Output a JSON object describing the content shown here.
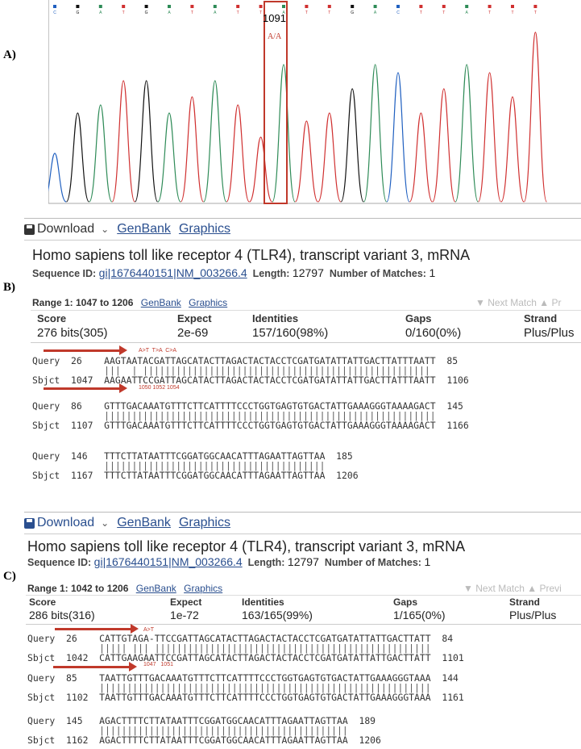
{
  "labels": {
    "a": "A)",
    "b": "B)",
    "c": "C)"
  },
  "chromatogram": {
    "position_label": "1091",
    "genotype": "A/A",
    "bases": [
      "C",
      "G",
      "A",
      "T",
      "G",
      "A",
      "T",
      "A",
      "T",
      "T",
      "A",
      "T",
      "T",
      "G",
      "A",
      "C",
      "T",
      "T",
      "A",
      "T",
      "T",
      "T"
    ]
  },
  "blast_b": {
    "download": "Download",
    "genbank": "GenBank",
    "graphics": "Graphics",
    "title": "Homo sapiens toll like receptor 4 (TLR4), transcript variant 3, mRNA",
    "seqid_label": "Sequence ID:",
    "seqid_value": "gi|1676440151|NM_003266.4",
    "length_label": "Length:",
    "length_value": "12797",
    "matches_label": "Number of Matches:",
    "matches_value": "1",
    "range_text": "Range 1: 1047 to 1206",
    "range_genbank": "GenBank",
    "range_graphics": "Graphics",
    "next_match": "▼ Next Match  ▲ Pr",
    "headers": {
      "score": "Score",
      "expect": "Expect",
      "identities": "Identities",
      "gaps": "Gaps",
      "strand": "Strand"
    },
    "values": {
      "score": "276 bits(305)",
      "expect": "2e-69",
      "identities": "157/160(98%)",
      "gaps": "0/160(0%)",
      "strand": "Plus/Plus"
    },
    "mutation_top": "A>T  T>A  C>A",
    "mutation_bottom": "1050 1052 1054",
    "lines": [
      "Query  26    AAGTAATACGATTAGCATACTTAGACTACTACCTCGATGATATTATTGACTTATTTAATT  85",
      "Sbjct  1047  AAGAATTCCGATTAGCATACTTAGACTACTACCTCGATGATATTATTGACTTATTTAATT  1106",
      "Query  86    GTTTGACAAATGTTTCTTCATTTTCCCTGGTGAGTGTGACTATTGAAAGGGTAAAAGACT  145",
      "Sbjct  1107  GTTTGACAAATGTTTCTTCATTTTCCCTGGTGAGTGTGACTATTGAAAGGGTAAAAGACT  1166",
      "Query  146   TTTCTTATAATTTCGGATGGCAACATTTAGAATTAGTTAA  185",
      "Sbjct  1167  TTTCTTATAATTTCGGATGGCAACATTTAGAATTAGTTAA  1206"
    ],
    "bars": [
      "             |||  | ||||||||||||||||||||||||||||||||||||||||||||||||||||",
      "             ||||||||||||||||||||||||||||||||||||||||||||||||||||||||||||",
      "             ||||||||||||||||||||||||||||||||||||||||"
    ]
  },
  "blast_c": {
    "download": "Download",
    "genbank": "GenBank",
    "graphics": "Graphics",
    "title": "Homo sapiens toll like receptor 4 (TLR4), transcript variant 3, mRNA",
    "seqid_label": "Sequence ID:",
    "seqid_value": "gi|1676440151|NM_003266.4",
    "length_label": "Length:",
    "length_value": "12797",
    "matches_label": "Number of Matches:",
    "matches_value": "1",
    "range_text": "Range 1: 1042 to 1206",
    "range_genbank": "GenBank",
    "range_graphics": "Graphics",
    "next_match": "▼ Next Match  ▲ Previ",
    "headers": {
      "score": "Score",
      "expect": "Expect",
      "identities": "Identities",
      "gaps": "Gaps",
      "strand": "Strand"
    },
    "values": {
      "score": "286 bits(316)",
      "expect": "1e-72",
      "identities": "163/165(99%)",
      "gaps": "1/165(0%)",
      "strand": "Plus/Plus"
    },
    "mutation_top": "A>T",
    "mutation_bottom": "1047   1051",
    "lines": [
      "Query  26    CATTGTAGA-TTCCGATTAGCATACTTAGACTACTACCTCGATGATATTATTGACTTATT  84",
      "Sbjct  1042  CATTGAAGAATTCCGATTAGCATACTTAGACTACTACCTCGATGATATTATTGACTTATT  1101",
      "Query  85    TAATTGTTTGACAAATGTTTCTTCATTTTCCCTGGTGAGTGTGACTATTGAAAGGGTAAA  144",
      "Sbjct  1102  TAATTGTTTGACAAATGTTTCTTCATTTTCCCTGGTGAGTGTGACTATTGAAAGGGTAAA  1161",
      "Query  145   AGACTTTTCTTATAATTTCGGATGGCAACATTTAGAATTAGTTAA  189",
      "Sbjct  1162  AGACTTTTCTTATAATTTCGGATGGCAACATTTAGAATTAGTTAA  1206"
    ],
    "bars": [
      "             ||||| ||| ||||||||||||||||||||||||||||||||||||||||||||||||||",
      "             ||||||||||||||||||||||||||||||||||||||||||||||||||||||||||||",
      "             |||||||||||||||||||||||||||||||||||||||||||||"
    ]
  }
}
